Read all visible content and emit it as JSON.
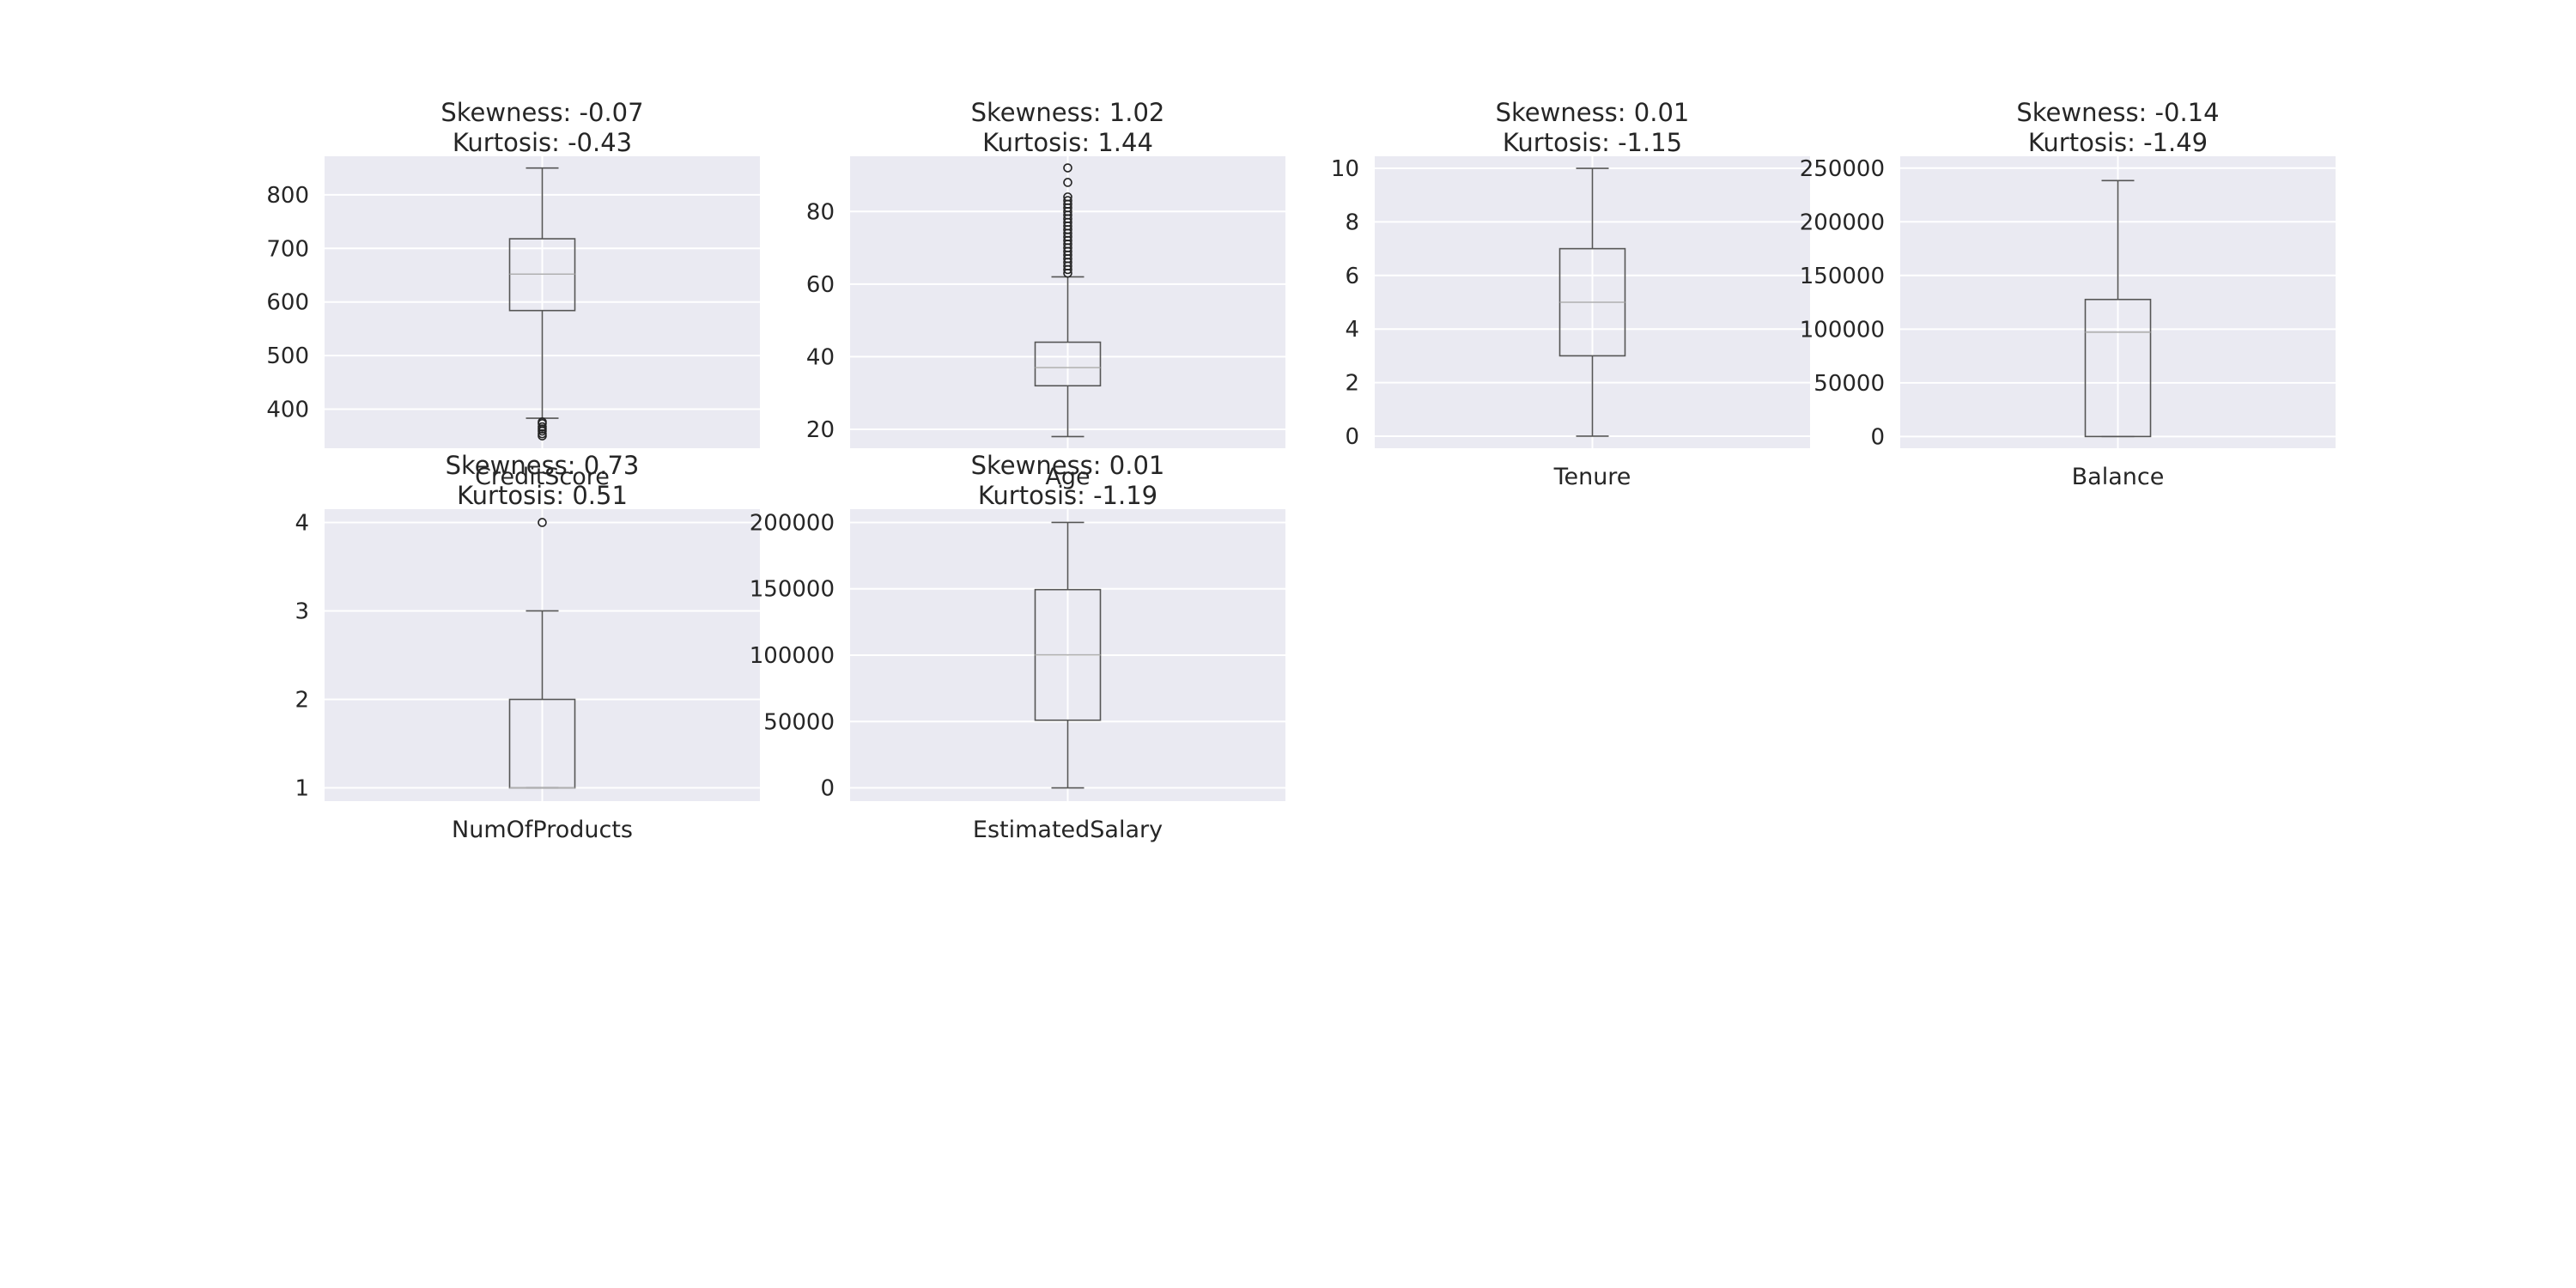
{
  "chart_data": [
    {
      "type": "boxplot",
      "title_lines": [
        "Skewness: -0.07",
        "Kurtosis: -0.43"
      ],
      "xlabel": "CreditScore",
      "ylim": [
        327,
        872
      ],
      "yticks": [
        400,
        500,
        600,
        700,
        800
      ],
      "ytick_labels": [
        "400",
        "500",
        "600",
        "700",
        "800"
      ],
      "box": {
        "whisker_low": 383,
        "q1": 584,
        "median": 652,
        "q3": 718,
        "whisker_high": 850
      },
      "outliers": [
        350,
        354,
        359,
        363,
        367,
        373,
        376
      ],
      "grid": true
    },
    {
      "type": "boxplot",
      "title_lines": [
        "Skewness: 1.02",
        "Kurtosis: 1.44"
      ],
      "xlabel": "Age",
      "ylim": [
        14.8,
        95.2
      ],
      "yticks": [
        20,
        40,
        60,
        80
      ],
      "ytick_labels": [
        "20",
        "40",
        "60",
        "80"
      ],
      "box": {
        "whisker_low": 18,
        "q1": 32,
        "median": 37,
        "q3": 44,
        "whisker_high": 62
      },
      "outliers": [
        63,
        64,
        65,
        66,
        67,
        68,
        69,
        70,
        71,
        72,
        73,
        74,
        75,
        76,
        77,
        78,
        79,
        80,
        81,
        82,
        83,
        84,
        88,
        92
      ],
      "grid": true
    },
    {
      "type": "boxplot",
      "title_lines": [
        "Skewness: 0.01",
        "Kurtosis: -1.15"
      ],
      "xlabel": "Tenure",
      "ylim": [
        -0.45,
        10.45
      ],
      "yticks": [
        0,
        2,
        4,
        6,
        8,
        10
      ],
      "ytick_labels": [
        "0",
        "2",
        "4",
        "6",
        "8",
        "10"
      ],
      "box": {
        "whisker_low": 0,
        "q1": 3,
        "median": 5,
        "q3": 7,
        "whisker_high": 10
      },
      "outliers": [],
      "grid": true
    },
    {
      "type": "boxplot",
      "title_lines": [
        "Skewness: -0.14",
        "Kurtosis: -1.49"
      ],
      "xlabel": "Balance",
      "ylim": [
        -10900,
        261000
      ],
      "yticks": [
        0,
        50000,
        100000,
        150000,
        200000,
        250000
      ],
      "ytick_labels": [
        "0",
        "50000",
        "100000",
        "150000",
        "200000",
        "250000"
      ],
      "box": {
        "whisker_low": 0,
        "q1": 0,
        "median": 97199,
        "q3": 127644,
        "whisker_high": 238387
      },
      "outliers": [],
      "grid": true
    },
    {
      "type": "boxplot",
      "title_lines": [
        "Skewness: 0.73",
        "Kurtosis: 0.51"
      ],
      "xlabel": "NumOfProducts",
      "ylim": [
        0.85,
        4.15
      ],
      "yticks": [
        1,
        2,
        3,
        4
      ],
      "ytick_labels": [
        "1",
        "2",
        "3",
        "4"
      ],
      "box": {
        "whisker_low": 1,
        "q1": 1,
        "median": 1,
        "q3": 2,
        "whisker_high": 3
      },
      "outliers": [
        4
      ],
      "grid": true
    },
    {
      "type": "boxplot",
      "title_lines": [
        "Skewness: 0.01",
        "Kurtosis: -1.19"
      ],
      "xlabel": "EstimatedSalary",
      "ylim": [
        -9990,
        210000
      ],
      "yticks": [
        0,
        50000,
        100000,
        150000,
        200000
      ],
      "ytick_labels": [
        "0",
        "50000",
        "100000",
        "150000",
        "200000"
      ],
      "box": {
        "whisker_low": 12,
        "q1": 51002,
        "median": 100194,
        "q3": 149388,
        "whisker_high": 199992
      },
      "outliers": [],
      "grid": true
    }
  ],
  "colors": {
    "axes_background": "#eaeaf2",
    "grid": "#ffffff",
    "box_line": "#555555",
    "median_line": "#b0b0b0",
    "text": "#262626"
  }
}
